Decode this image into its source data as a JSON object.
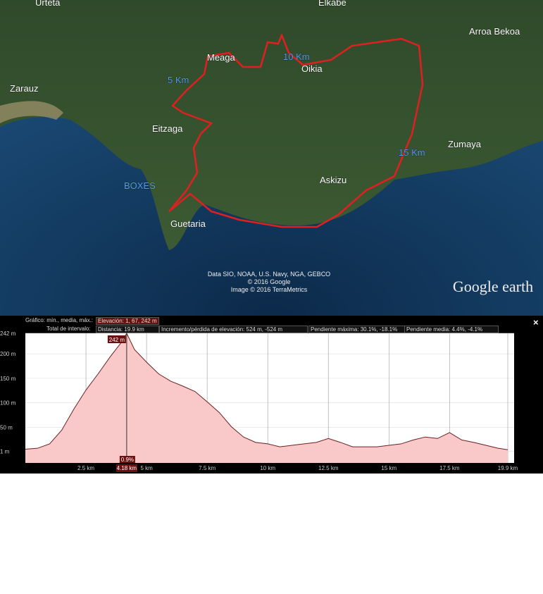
{
  "map": {
    "labels": [
      "Urteta",
      "Elkabe",
      "Arroa Bekoa",
      "Meaga",
      "10 Km",
      "Oikia",
      "5 Km",
      "Zarauz",
      "Eitzaga",
      "15 Km",
      "Zumaya",
      "Askizu",
      "BOXES",
      "Guetaria"
    ],
    "attribution": [
      "Data SIO, NOAA, U.S. Navy, NGA, GEBCO",
      "© 2016 Google",
      "Image © 2016 TerraMetrics"
    ],
    "logo": "Google earth"
  },
  "chart_data": {
    "type": "area",
    "stats": [
      "Gráfico: mín., media, máx.:",
      "Elevación: 1, 67, 242 m",
      "Total de intervalo:",
      "Distancia: 19.9 km",
      "Incremento/pérdida de elevación: 524 m, -524 m",
      "Pendiente máxima: 30.1%, -18.1%",
      "Pendiente media: 4.4%, -4.1%"
    ],
    "close": "×",
    "x": [
      0,
      0.5,
      1,
      1.5,
      2,
      2.5,
      3,
      3.5,
      4,
      4.18,
      4.5,
      5,
      5.5,
      6,
      6.5,
      7,
      7.5,
      8,
      8.5,
      9,
      9.5,
      10,
      10.5,
      11,
      11.5,
      12,
      12.5,
      13,
      13.5,
      14,
      14.5,
      15,
      15.5,
      16,
      16.5,
      17,
      17.5,
      18,
      18.5,
      19,
      19.5,
      19.9
    ],
    "values": [
      5,
      7,
      16,
      44,
      87,
      126,
      159,
      194,
      226,
      242,
      209,
      183,
      159,
      144,
      134,
      123,
      102,
      80,
      51,
      30,
      19,
      16,
      10,
      13,
      16,
      19,
      27,
      19,
      10,
      10,
      10,
      13,
      16,
      24,
      30,
      27,
      39,
      24,
      19,
      13,
      7,
      4
    ],
    "color": "#f9c9c9",
    "line_color": "#6b2020",
    "xlim": [
      0,
      19.9
    ],
    "ylim": [
      -23,
      242
    ],
    "xticks": [
      {
        "value": 2.5,
        "label": "2.5 km"
      },
      {
        "value": 5,
        "label": "5 km"
      },
      {
        "value": 7.5,
        "label": "7.5 km"
      },
      {
        "value": 10,
        "label": "10 km"
      },
      {
        "value": 12.5,
        "label": "12.5 km"
      },
      {
        "value": 15,
        "label": "15 km"
      },
      {
        "value": 17.5,
        "label": "17.5 km"
      },
      {
        "value": 19.9,
        "label": "19.9 km"
      }
    ],
    "yticks": [
      {
        "value": 242,
        "label": "242 m"
      },
      {
        "value": 200,
        "label": "200 m"
      },
      {
        "value": 150,
        "label": "150 m"
      },
      {
        "value": 100,
        "label": "100 m"
      },
      {
        "value": 50,
        "label": "50 m"
      },
      {
        "value": 1,
        "label": "1 m"
      }
    ],
    "grid": true,
    "cursor": {
      "x": 4.18,
      "x_label": "4.18 km",
      "y_label": "242 m",
      "slope_label": "0.9%"
    }
  }
}
